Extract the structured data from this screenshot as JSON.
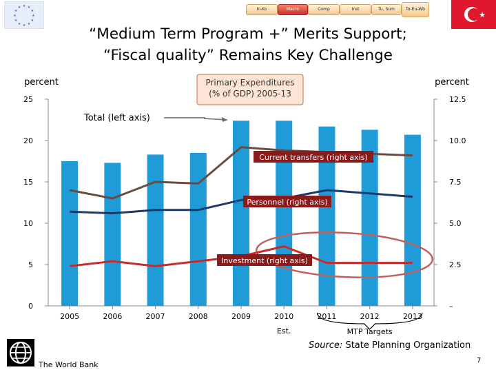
{
  "header": {
    "nav": [
      "In-Ko",
      "Macro",
      "Comp",
      "Inst",
      "Tu. Sum",
      "Tu-Eu-Wb"
    ],
    "active_nav": "Macro",
    "title_line1": "“Medium Term Program +” Merits Support;",
    "title_line2": "“Fiscal quality” Remains Key Challenge"
  },
  "colors": {
    "bars": "#1f9bd7",
    "total_axis": "#5f6a72",
    "current_transfers": "#6b4a42",
    "personnel": "#1a3a6b",
    "investment": "#c82a2a",
    "ellipse": "#c0605a",
    "label_box": "#8b1a1a",
    "legend_box_fill": "#fce4d6",
    "legend_box_border": "#c07050"
  },
  "chart_data": {
    "type": "bar",
    "title": "Primary Expenditures (% of GDP) 2005-13",
    "categories": [
      "2005",
      "2006",
      "2007",
      "2008",
      "2009",
      "2010",
      "2011",
      "2012",
      "2013"
    ],
    "category_notes": [
      "",
      "",
      "",
      "",
      "",
      "Est.",
      "",
      "",
      ""
    ],
    "bracket_label": "MTP Targets",
    "y_left": {
      "label": "percent",
      "ticks": [
        "0",
        "5",
        "10",
        "15",
        "20",
        "25"
      ],
      "range": [
        0,
        25
      ]
    },
    "y_right": {
      "label": "percent",
      "ticks": [
        "–",
        "2.5",
        "5.0",
        "7.5",
        "10.0",
        "12.5"
      ],
      "range": [
        0,
        12.5
      ]
    },
    "series": [
      {
        "name": "Total (left axis)",
        "axis": "left",
        "type": "bar",
        "values": [
          17.5,
          17.3,
          18.3,
          18.5,
          22.4,
          22.4,
          21.7,
          21.3,
          20.7
        ]
      },
      {
        "name": "Current transfers (right axis)",
        "axis": "right",
        "type": "line",
        "values": [
          7.0,
          6.5,
          7.5,
          7.4,
          9.6,
          9.4,
          9.3,
          9.2,
          9.1
        ]
      },
      {
        "name": "Personnel (right axis)",
        "axis": "right",
        "type": "line",
        "values": [
          5.7,
          5.6,
          5.8,
          5.8,
          6.4,
          6.5,
          7.0,
          6.8,
          6.6
        ]
      },
      {
        "name": "Investment (right axis)",
        "axis": "right",
        "type": "line",
        "values": [
          2.4,
          2.7,
          2.4,
          2.7,
          3.0,
          3.6,
          2.6,
          2.6,
          2.6
        ]
      }
    ]
  },
  "footer": {
    "source_label": "Source:",
    "source_text": " State Planning Organization",
    "org_name": "The World Bank",
    "page_number": "7"
  }
}
